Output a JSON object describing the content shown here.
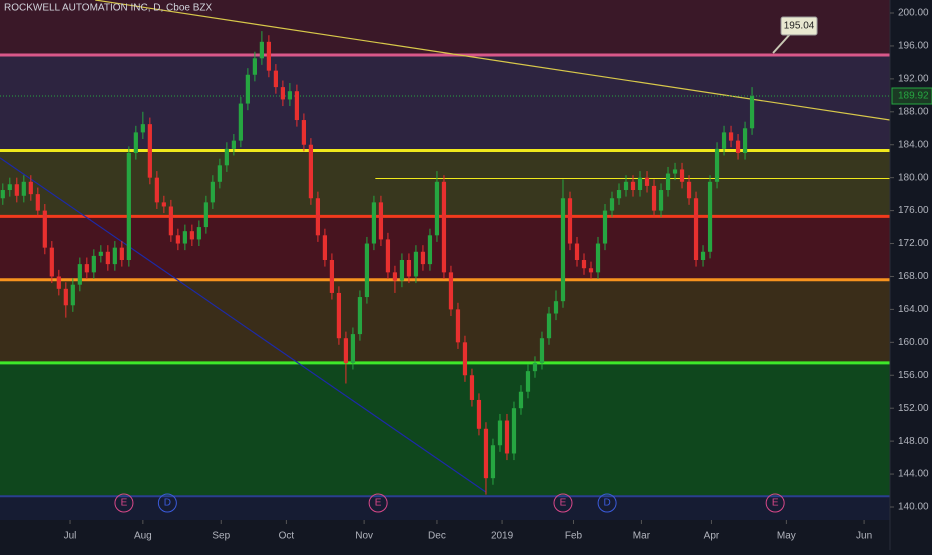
{
  "chart_data": {
    "type": "candlestick",
    "title": "ROCKWELL AUTOMATION INC, D, Cboe BZX",
    "x": [
      0,
      1,
      2,
      3,
      4,
      5,
      6,
      7,
      8,
      9,
      10,
      11,
      12,
      13,
      14,
      15,
      16,
      17,
      18,
      19,
      20,
      21,
      22,
      23,
      24,
      25,
      26,
      27,
      28,
      29,
      30,
      31,
      32,
      33,
      34,
      35,
      36,
      37,
      38,
      39,
      40,
      41,
      42,
      43,
      44,
      45,
      46,
      47,
      48,
      49,
      50,
      51,
      52,
      53,
      54,
      55,
      56,
      57,
      58,
      59,
      60,
      61,
      62,
      63,
      64,
      65,
      66,
      67,
      68,
      69,
      70,
      71,
      72,
      73,
      74,
      75,
      76,
      77,
      78,
      79,
      80,
      81,
      82,
      83,
      84,
      85,
      86,
      87,
      88,
      89,
      90,
      91,
      92,
      93,
      94,
      95,
      96,
      97,
      98,
      99,
      100,
      101,
      102,
      103,
      104,
      105,
      106,
      107
    ],
    "open": [
      177.5,
      178.5,
      179.2,
      177.8,
      179.5,
      178.0,
      176.0,
      171.5,
      168.0,
      166.5,
      164.5,
      167.0,
      169.5,
      168.5,
      170.5,
      171.0,
      169.5,
      171.5,
      170.0,
      183.0,
      185.5,
      186.5,
      180.0,
      177.0,
      176.5,
      173.0,
      172.0,
      173.5,
      172.5,
      174.0,
      177.0,
      179.5,
      181.5,
      183.5,
      184.5,
      189.0,
      192.5,
      194.5,
      196.5,
      193.0,
      191.0,
      189.5,
      190.5,
      187.0,
      184.0,
      177.5,
      173.0,
      170.0,
      166.0,
      160.5,
      157.5,
      161.0,
      165.5,
      172.0,
      177.0,
      172.5,
      168.5,
      167.5,
      170.0,
      168.0,
      171.0,
      169.5,
      173.0,
      179.5,
      168.5,
      164.0,
      160.0,
      156.0,
      153.0,
      149.5,
      143.5,
      147.5,
      150.5,
      146.5,
      152.0,
      154.0,
      156.5,
      157.5,
      160.5,
      163.5,
      165.0,
      177.5,
      172.0,
      170.0,
      169.0,
      168.5,
      172.0,
      176.0,
      177.5,
      178.5,
      179.5,
      178.5,
      180.0,
      179.0,
      176.0,
      178.5,
      180.5,
      181.0,
      179.5,
      177.5,
      170.0,
      171.0,
      179.5,
      183.5,
      185.5,
      184.5,
      183.0,
      186.0
    ],
    "high": [
      179.3,
      180.0,
      180.0,
      180.3,
      180.3,
      178.8,
      176.8,
      172.3,
      168.8,
      167.3,
      167.8,
      170.3,
      170.3,
      171.3,
      171.8,
      171.8,
      172.3,
      172.3,
      183.8,
      186.3,
      188.0,
      187.3,
      180.8,
      177.8,
      177.3,
      173.8,
      174.3,
      174.3,
      174.8,
      177.8,
      180.3,
      182.3,
      184.3,
      185.3,
      189.8,
      193.3,
      195.3,
      197.8,
      197.3,
      193.8,
      191.8,
      191.5,
      191.3,
      187.8,
      184.8,
      178.3,
      173.8,
      170.8,
      166.8,
      161.3,
      161.8,
      166.3,
      172.8,
      177.8,
      177.8,
      173.3,
      169.3,
      170.8,
      170.8,
      171.8,
      171.8,
      173.8,
      180.8,
      180.3,
      169.3,
      164.8,
      160.8,
      156.8,
      153.8,
      150.3,
      148.3,
      151.3,
      151.3,
      152.8,
      154.8,
      157.3,
      158.3,
      161.3,
      164.3,
      166.3,
      179.8,
      178.3,
      172.8,
      170.8,
      169.8,
      172.8,
      176.8,
      178.3,
      179.3,
      180.3,
      180.3,
      180.8,
      180.8,
      179.8,
      179.3,
      181.3,
      181.8,
      181.8,
      180.3,
      178.3,
      171.8,
      180.3,
      184.3,
      186.3,
      186.3,
      185.3,
      186.8,
      191.0
    ],
    "low": [
      176.7,
      177.7,
      177.0,
      177.0,
      177.2,
      175.2,
      170.7,
      167.2,
      165.7,
      163.0,
      163.7,
      166.2,
      167.7,
      167.7,
      169.7,
      168.7,
      168.7,
      169.2,
      169.2,
      182.2,
      184.7,
      179.2,
      176.2,
      175.7,
      172.2,
      171.2,
      171.2,
      171.7,
      171.7,
      173.2,
      176.2,
      178.7,
      180.7,
      182.7,
      183.7,
      188.2,
      191.7,
      193.7,
      192.2,
      190.2,
      188.7,
      188.7,
      186.2,
      183.2,
      176.7,
      172.2,
      169.2,
      165.2,
      159.7,
      155.0,
      156.7,
      160.2,
      164.7,
      171.2,
      171.7,
      167.7,
      166.0,
      166.7,
      167.2,
      167.2,
      168.7,
      168.7,
      172.2,
      167.7,
      163.2,
      159.2,
      155.2,
      152.2,
      148.7,
      141.5,
      142.7,
      146.7,
      145.7,
      145.7,
      151.2,
      153.2,
      155.7,
      156.7,
      159.7,
      162.7,
      164.2,
      171.2,
      169.2,
      168.2,
      167.7,
      167.7,
      171.2,
      175.2,
      176.7,
      177.7,
      177.7,
      177.7,
      178.2,
      175.2,
      175.2,
      177.7,
      179.7,
      178.7,
      176.7,
      169.2,
      169.2,
      170.2,
      178.7,
      182.7,
      183.7,
      182.2,
      182.2,
      185.2
    ],
    "close": [
      178.5,
      179.2,
      177.8,
      179.5,
      178.0,
      176.0,
      171.5,
      168.0,
      166.5,
      164.5,
      167.0,
      169.5,
      168.5,
      170.5,
      171.0,
      169.5,
      171.5,
      170.0,
      183.0,
      185.5,
      186.5,
      180.0,
      177.0,
      176.5,
      173.0,
      172.0,
      173.5,
      172.5,
      174.0,
      177.0,
      179.5,
      181.5,
      183.5,
      184.5,
      189.0,
      192.5,
      194.5,
      196.5,
      193.0,
      191.0,
      189.5,
      190.5,
      187.0,
      184.0,
      177.5,
      173.0,
      170.0,
      166.0,
      160.5,
      157.5,
      161.0,
      165.5,
      172.0,
      177.0,
      172.5,
      168.5,
      167.5,
      170.0,
      168.0,
      171.0,
      169.5,
      173.0,
      179.5,
      168.5,
      164.0,
      160.0,
      156.0,
      153.0,
      149.5,
      143.5,
      147.5,
      150.5,
      146.5,
      152.0,
      154.0,
      156.5,
      157.5,
      160.5,
      163.5,
      165.0,
      177.5,
      172.0,
      170.0,
      169.0,
      168.5,
      172.0,
      176.0,
      177.5,
      178.5,
      179.5,
      178.5,
      180.0,
      179.0,
      176.0,
      178.5,
      180.5,
      181.0,
      179.5,
      177.5,
      170.0,
      171.0,
      179.5,
      183.5,
      185.5,
      184.5,
      183.0,
      186.0,
      189.9
    ],
    "up_color": "#26a641",
    "down_color": "#e8302f",
    "xlim": [
      -0.4,
      126.7
    ],
    "ylim": [
      138.42,
      201.58
    ],
    "xticks": [
      {
        "value": 9.6,
        "label": "Jul"
      },
      {
        "value": 20.0,
        "label": "Aug"
      },
      {
        "value": 31.2,
        "label": "Sep"
      },
      {
        "value": 40.5,
        "label": "Oct"
      },
      {
        "value": 51.6,
        "label": "Nov"
      },
      {
        "value": 62.0,
        "label": "Dec"
      },
      {
        "value": 71.3,
        "label": "2019"
      },
      {
        "value": 81.5,
        "label": "Feb"
      },
      {
        "value": 91.2,
        "label": "Mar"
      },
      {
        "value": 101.2,
        "label": "Apr"
      },
      {
        "value": 111.9,
        "label": "May"
      },
      {
        "value": 123.0,
        "label": "Jun"
      }
    ],
    "yticks": [
      {
        "value": 140,
        "label": "140.00"
      },
      {
        "value": 144,
        "label": "144.00"
      },
      {
        "value": 148,
        "label": "148.00"
      },
      {
        "value": 152,
        "label": "152.00"
      },
      {
        "value": 156,
        "label": "156.00"
      },
      {
        "value": 160,
        "label": "160.00"
      },
      {
        "value": 164,
        "label": "164.00"
      },
      {
        "value": 168,
        "label": "168.00"
      },
      {
        "value": 172,
        "label": "172.00"
      },
      {
        "value": 176,
        "label": "176.00"
      },
      {
        "value": 180,
        "label": "180.00"
      },
      {
        "value": 184,
        "label": "184.00"
      },
      {
        "value": 188,
        "label": "188.00"
      },
      {
        "value": 192,
        "label": "192.00"
      },
      {
        "value": 196,
        "label": "196.00"
      },
      {
        "value": 200,
        "label": "200.00"
      }
    ],
    "bands": [
      {
        "from": 194.9,
        "to": 201.58,
        "color": "#3a1828"
      },
      {
        "from": 183.3,
        "to": 194.9,
        "color": "#2d2440"
      },
      {
        "from": 175.3,
        "to": 183.3,
        "color": "#38371e"
      },
      {
        "from": 167.6,
        "to": 175.3,
        "color": "#47141f"
      },
      {
        "from": 157.5,
        "to": 167.6,
        "color": "#3a2d19"
      },
      {
        "from": 141.3,
        "to": 157.5,
        "color": "#0f471d"
      },
      {
        "from": 138.42,
        "to": 141.3,
        "color": "#161c33"
      }
    ],
    "levels": [
      {
        "value": 194.9,
        "color": "#d9588a",
        "width": 3,
        "from": -0.4
      },
      {
        "value": 183.3,
        "color": "#f0e91c",
        "width": 3,
        "from": -0.4
      },
      {
        "value": 179.9,
        "color": "#f0e91c",
        "width": 1,
        "from": 53.2
      },
      {
        "value": 175.3,
        "color": "#f23a1c",
        "width": 3,
        "from": -0.4
      },
      {
        "value": 167.6,
        "color": "#f7931e",
        "width": 3,
        "from": -0.4
      },
      {
        "value": 157.5,
        "color": "#3ee82a",
        "width": 3,
        "from": -0.4
      },
      {
        "value": 141.3,
        "color": "#2a3f8f",
        "width": 2,
        "from": -0.4
      }
    ],
    "trendlines": [
      {
        "x": [
          13.2,
          126.7
        ],
        "y": [
          201.58,
          187.0
        ],
        "color": "#d8c84a"
      },
      {
        "x": [
          -0.4,
          69.0
        ],
        "y": [
          182.4,
          141.8
        ],
        "color": "#1d2aa8"
      }
    ],
    "last_price": 189.92,
    "last_price_color": "#26a641",
    "callout": {
      "text": 195.04,
      "x": 110.0,
      "y": 194.9
    },
    "events": [
      {
        "label": "E",
        "x": 17.3
      },
      {
        "label": "D",
        "x": 23.5
      },
      {
        "label": "E",
        "x": 53.6
      },
      {
        "label": "E",
        "x": 80.0
      },
      {
        "label": "D",
        "x": 86.3
      },
      {
        "label": "E",
        "x": 110.3
      }
    ]
  }
}
